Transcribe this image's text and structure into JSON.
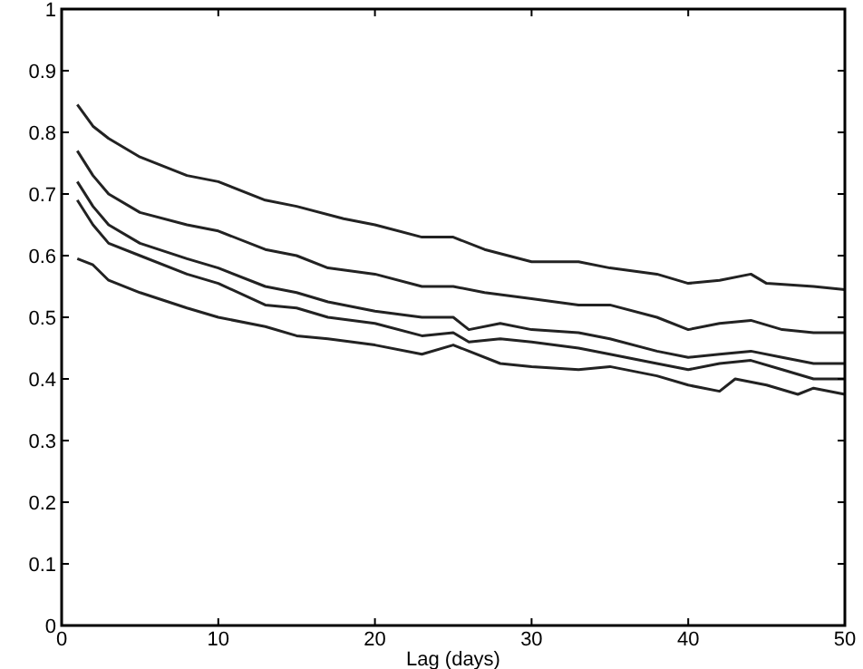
{
  "chart_data": {
    "type": "line",
    "xlabel": "Lag (days)",
    "xlim": [
      0,
      50
    ],
    "xticks": [
      0,
      10,
      20,
      30,
      40,
      50
    ],
    "ylim": [
      0,
      1
    ],
    "yticks": [
      0,
      0.1,
      0.2,
      0.3,
      0.4,
      0.5,
      0.6,
      0.7,
      0.8,
      0.9,
      1
    ],
    "grid": false,
    "marker": "none",
    "line_style": "solid",
    "series": [
      {
        "color": "#222222",
        "x": [
          1,
          2,
          3,
          5,
          8,
          10,
          13,
          15,
          18,
          20,
          23,
          25,
          27,
          30,
          33,
          35,
          38,
          40,
          42,
          44,
          45,
          48,
          50
        ],
        "values": [
          0.845,
          0.81,
          0.79,
          0.76,
          0.73,
          0.72,
          0.69,
          0.68,
          0.66,
          0.65,
          0.63,
          0.63,
          0.61,
          0.59,
          0.59,
          0.58,
          0.57,
          0.555,
          0.56,
          0.57,
          0.555,
          0.55,
          0.545
        ]
      },
      {
        "color": "#222222",
        "x": [
          1,
          2,
          3,
          5,
          8,
          10,
          13,
          15,
          17,
          20,
          23,
          25,
          27,
          30,
          33,
          35,
          38,
          40,
          42,
          44,
          46,
          48,
          50
        ],
        "values": [
          0.77,
          0.73,
          0.7,
          0.67,
          0.65,
          0.64,
          0.61,
          0.6,
          0.58,
          0.57,
          0.55,
          0.55,
          0.54,
          0.53,
          0.52,
          0.52,
          0.5,
          0.48,
          0.49,
          0.495,
          0.48,
          0.475,
          0.475
        ]
      },
      {
        "color": "#222222",
        "x": [
          1,
          2,
          3,
          5,
          8,
          10,
          13,
          15,
          17,
          20,
          23,
          25,
          26,
          28,
          30,
          33,
          35,
          38,
          40,
          42,
          44,
          46,
          48,
          50
        ],
        "values": [
          0.72,
          0.68,
          0.65,
          0.62,
          0.595,
          0.58,
          0.55,
          0.54,
          0.525,
          0.51,
          0.5,
          0.5,
          0.48,
          0.49,
          0.48,
          0.475,
          0.465,
          0.445,
          0.435,
          0.44,
          0.445,
          0.435,
          0.425,
          0.425
        ]
      },
      {
        "color": "#222222",
        "x": [
          1,
          2,
          3,
          5,
          8,
          10,
          13,
          15,
          17,
          20,
          23,
          25,
          26,
          28,
          30,
          33,
          35,
          38,
          40,
          42,
          44,
          46,
          48,
          50
        ],
        "values": [
          0.69,
          0.65,
          0.62,
          0.6,
          0.57,
          0.555,
          0.52,
          0.515,
          0.5,
          0.49,
          0.47,
          0.475,
          0.46,
          0.465,
          0.46,
          0.45,
          0.44,
          0.425,
          0.415,
          0.425,
          0.43,
          0.415,
          0.4,
          0.4
        ]
      },
      {
        "color": "#222222",
        "x": [
          1,
          2,
          3,
          5,
          8,
          10,
          13,
          15,
          17,
          20,
          23,
          25,
          26,
          28,
          30,
          33,
          35,
          38,
          40,
          42,
          43,
          45,
          47,
          48,
          50
        ],
        "values": [
          0.595,
          0.585,
          0.56,
          0.54,
          0.515,
          0.5,
          0.485,
          0.47,
          0.465,
          0.455,
          0.44,
          0.455,
          0.445,
          0.425,
          0.42,
          0.415,
          0.42,
          0.405,
          0.39,
          0.38,
          0.4,
          0.39,
          0.375,
          0.385,
          0.375
        ]
      }
    ]
  }
}
